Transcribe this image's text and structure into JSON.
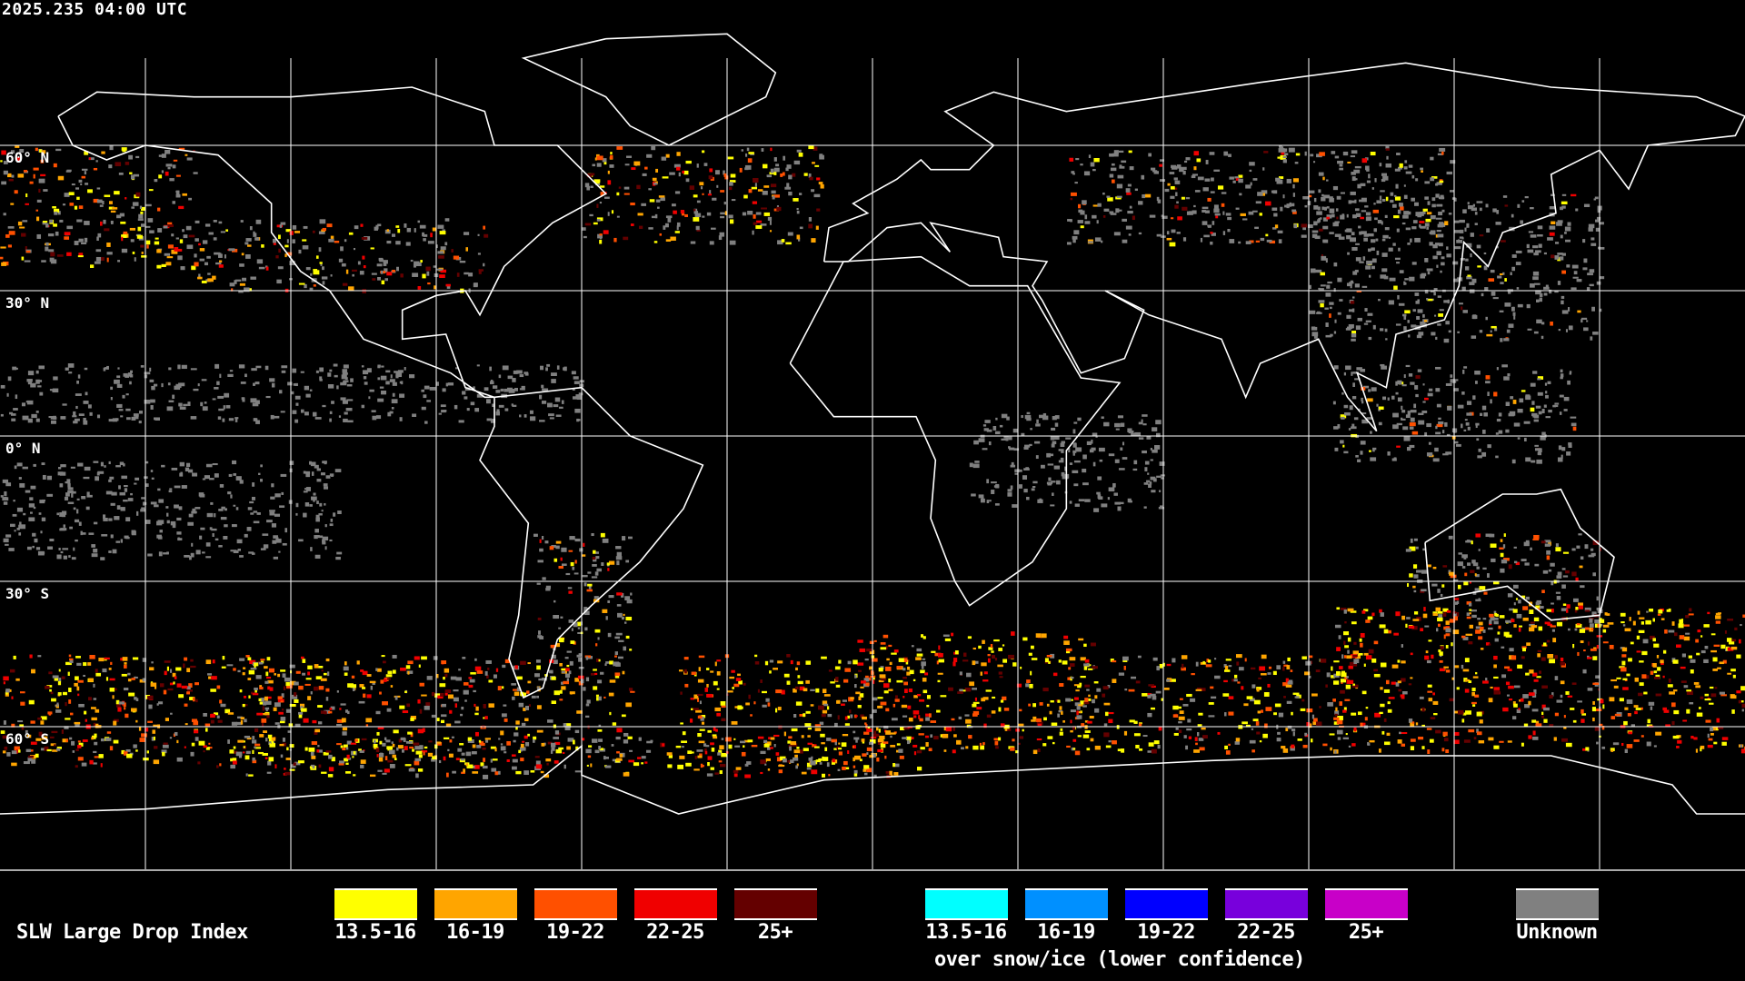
{
  "timestamp": "2025.235 04:00 UTC",
  "lat_labels": [
    "60° N",
    "30° N",
    "0° N",
    "30° S",
    "60° S"
  ],
  "legend": {
    "title": "SLW Large Drop Index",
    "standard": [
      {
        "label": "13.5-16",
        "color": "#ffff00"
      },
      {
        "label": "16-19",
        "color": "#ffa500"
      },
      {
        "label": "19-22",
        "color": "#ff5000"
      },
      {
        "label": "22-25",
        "color": "#f00000"
      },
      {
        "label": "25+",
        "color": "#640000"
      }
    ],
    "snow_ice": [
      {
        "label": "13.5-16",
        "color": "#00ffff"
      },
      {
        "label": "16-19",
        "color": "#0090ff"
      },
      {
        "label": "19-22",
        "color": "#0000ff"
      },
      {
        "label": "22-25",
        "color": "#7800dc"
      },
      {
        "label": "25+",
        "color": "#c800c8"
      }
    ],
    "snow_ice_note": "over snow/ice (lower confidence)",
    "unknown": {
      "label": "Unknown",
      "color": "#808080"
    }
  },
  "map": {
    "projection": "equirectangular",
    "grid_spacing_deg": 30,
    "coastline_color": "#ffffff",
    "grid_color": "#ffffff"
  }
}
